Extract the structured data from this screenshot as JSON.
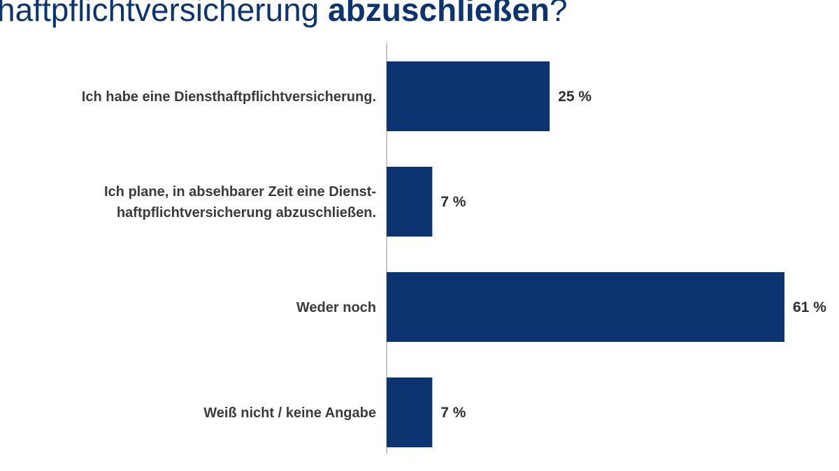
{
  "chart_data": {
    "type": "hbar",
    "title": [
      "haftpflichtversicherung ",
      "abzuschließen",
      "?"
    ],
    "categories": [
      "Ich habe eine Diensthaftpflichtversicherung.",
      "Ich plane, in absehbarer Zeit eine Dienst-\nhaftpflichtversicherung abzuschließen.",
      "Weder noch",
      "Weiß nicht / keine Angabe"
    ],
    "values": [
      25,
      7,
      61,
      7
    ],
    "value_labels": [
      "25 %",
      "7 %",
      "61 %",
      "7 %"
    ],
    "color": "#0b3470"
  }
}
